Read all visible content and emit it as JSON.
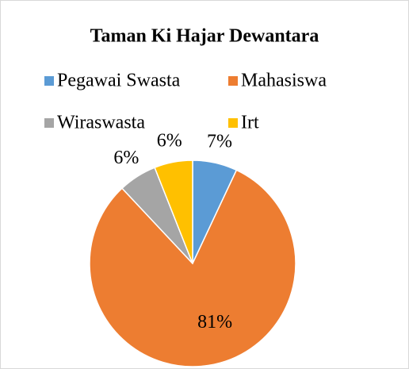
{
  "chart_data": {
    "type": "pie",
    "title": "Taman Ki Hajar Dewantara",
    "categories": [
      "Pegawai Swasta",
      "Mahasiswa",
      "Wiraswasta",
      "Irt"
    ],
    "values": [
      7,
      81,
      6,
      6
    ],
    "value_labels": [
      "7%",
      "81%",
      "6%",
      "6%"
    ],
    "colors": [
      "#5b9bd5",
      "#ed7d31",
      "#a5a5a5",
      "#ffc000"
    ]
  }
}
